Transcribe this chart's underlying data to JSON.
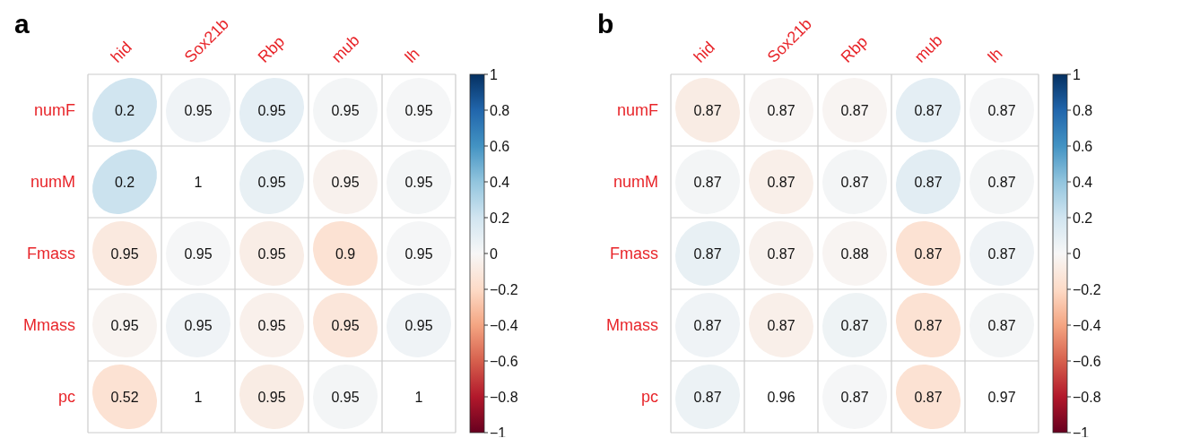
{
  "chart_data": [
    {
      "type": "heatmap",
      "title": "a",
      "categories": [
        "hid",
        "Sox21b",
        "Rbp",
        "mub",
        "lh"
      ],
      "y_categories": [
        "numF",
        "numM",
        "Fmass",
        "Mmass",
        "pc"
      ],
      "grid": true,
      "cells": [
        [
          0.2,
          0.04,
          0.1,
          0.02,
          0.01
        ],
        [
          0.22,
          null,
          0.08,
          -0.04,
          0.02
        ],
        [
          -0.1,
          0.01,
          -0.07,
          -0.15,
          0.01
        ],
        [
          -0.03,
          0.04,
          -0.05,
          -0.12,
          0.04
        ],
        [
          -0.15,
          null,
          -0.08,
          0.02,
          null
        ]
      ],
      "annotations": [
        "0.2",
        "0.95",
        "0.95",
        "0.95",
        "0.95",
        "0.2",
        "1",
        "0.95",
        "0.95",
        "0.95",
        "0.95",
        "0.95",
        "0.95",
        "0.9",
        "0.95",
        "0.95",
        "0.95",
        "0.95",
        "0.95",
        "0.95",
        "0.52",
        "1",
        "0.95",
        "0.95",
        "1"
      ],
      "clim": [
        -1,
        1
      ],
      "cticks": [
        {
          "value": -1,
          "label": "−1"
        },
        {
          "value": -0.8,
          "label": "−0.8"
        },
        {
          "value": -0.6,
          "label": "−0.6"
        },
        {
          "value": -0.4,
          "label": "−0.4"
        },
        {
          "value": -0.2,
          "label": "−0.2"
        },
        0,
        0.2,
        0.4,
        0.6,
        0.8,
        1
      ]
    },
    {
      "type": "heatmap",
      "title": "b",
      "categories": [
        "hid",
        "Sox21b",
        "Rbp",
        "mub",
        "lh"
      ],
      "y_categories": [
        "numF",
        "numM",
        "Fmass",
        "Mmass",
        "pc"
      ],
      "grid": true,
      "cells": [
        [
          -0.08,
          -0.02,
          -0.02,
          0.1,
          0.01
        ],
        [
          0.02,
          -0.06,
          0.02,
          0.11,
          0.02
        ],
        [
          0.08,
          -0.04,
          -0.02,
          -0.15,
          0.04
        ],
        [
          0.04,
          -0.06,
          0.05,
          -0.15,
          0.02
        ],
        [
          0.06,
          null,
          0.01,
          -0.15,
          null
        ]
      ],
      "annotations": [
        "0.87",
        "0.87",
        "0.87",
        "0.87",
        "0.87",
        "0.87",
        "0.87",
        "0.87",
        "0.87",
        "0.87",
        "0.87",
        "0.87",
        "0.88",
        "0.87",
        "0.87",
        "0.87",
        "0.87",
        "0.87",
        "0.87",
        "0.87",
        "0.87",
        "0.96",
        "0.87",
        "0.87",
        "0.97"
      ],
      "clim": [
        -1,
        1
      ],
      "cticks": [
        {
          "value": -1,
          "label": "−1"
        },
        {
          "value": -0.8,
          "label": "−0.8"
        },
        {
          "value": -0.6,
          "label": "−0.6"
        },
        {
          "value": -0.4,
          "label": "−0.4"
        },
        {
          "value": -0.2,
          "label": "−0.2"
        },
        0,
        0.2,
        0.4,
        0.6,
        0.8,
        1
      ]
    }
  ]
}
